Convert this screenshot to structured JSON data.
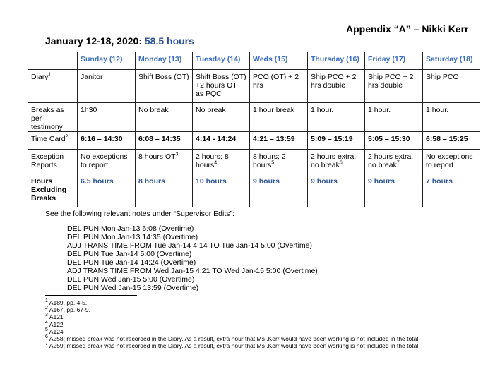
{
  "appendix": "Appendix “A” – Nikki Kerr",
  "title_prefix": "January 12-18, 2020:",
  "title_total": "58.5 hours",
  "columns": [
    "Sunday (12)",
    "Monday (13)",
    "Tuesday (14)",
    "Weds (15)",
    "Thursday (16)",
    "Friday (17)",
    "Saturday (18)"
  ],
  "rows": {
    "diary": {
      "label": "Diary",
      "fn": "1",
      "cells": [
        "Janitor",
        "Shift Boss (OT)",
        "Shift Boss (OT) +2 hours OT as PQC",
        "PCO (OT) + 2 hrs",
        "Ship PCO + 2 hrs double",
        "Ship PCO + 2 hrs double",
        "Ship PCO"
      ]
    },
    "breaks": {
      "label": "Breaks as per testimony",
      "cells": [
        "1h30",
        "No break",
        "No break",
        "1 hour break",
        "1 hour.",
        "1 hour.",
        "1 hour."
      ]
    },
    "timecard": {
      "label": "Time Card",
      "fn": "2",
      "cells": [
        "6:16 – 14:30",
        "6:08 – 14:35",
        "4:14  - 14:24",
        "4:21 – 13:59",
        "5:09 – 15:19",
        "5:05 – 15:30",
        "6:58 – 15:25"
      ]
    },
    "exceptions": {
      "label": "Exception Reports",
      "cells": [
        {
          "t": "No exceptions to report",
          "fn": ""
        },
        {
          "t": "8 hours OT",
          "fn": "3"
        },
        {
          "t": "2 hours; 8 hours",
          "fn": "4"
        },
        {
          "t": "8 hours; 2 hours",
          "fn": "5"
        },
        {
          "t": "2 hours extra, no break",
          "fn": "6"
        },
        {
          "t": "2 hours extra, no break",
          "fn": "7"
        },
        {
          "t": "No exceptions to report",
          "fn": ""
        }
      ]
    },
    "hours": {
      "label": "Hours Excluding Breaks",
      "cells": [
        "6.5 hours",
        "8 hours",
        "10 hours",
        "9 hours",
        "9 hours",
        "9 hours",
        "7 hours"
      ]
    }
  },
  "see_text": "See the following relevant notes under “Supervisor Edits”:",
  "notes": [
    "DEL PUN Mon Jan-13 6:08 (Overtime)",
    "DEL PUN Mon Jan-13 14:35 (Overtime)",
    "ADJ TRANS TIME FROM Tue Jan-14 4:14 TO Tue Jan-14 5:00 (Overtime)",
    "DEL PUN Tue Jan-14 5:00 (Overtime)",
    "DEL PUN Tue Jan-14 14:24 (Overtime)",
    "ADJ TRANS TIME FROM Wed Jan-15 4:21 TO Wed Jan-15 5:00 (Overtime)",
    "DEL PUN Wed Jan-15 5:00 (Overtime)",
    "DEL PUN Wed Jan-15 13:59 (Overtime)"
  ],
  "footnotes": [
    {
      "n": "1",
      "t": "A189, pp. 4-5."
    },
    {
      "n": "2",
      "t": "A167, pp. 67-9."
    },
    {
      "n": "3",
      "t": "A121"
    },
    {
      "n": "4",
      "t": "A122"
    },
    {
      "n": "5",
      "t": "A124"
    },
    {
      "n": "6",
      "t": "A258; missed break was not recorded in the Diary. As a result, extra hour that Ms .Kerr would have been working is not included in the total."
    },
    {
      "n": "7",
      "t": "A259; missed break was not recorded in the Diary. As a result, extra hour that Ms .Kerr would have been working is not included in the total."
    }
  ]
}
